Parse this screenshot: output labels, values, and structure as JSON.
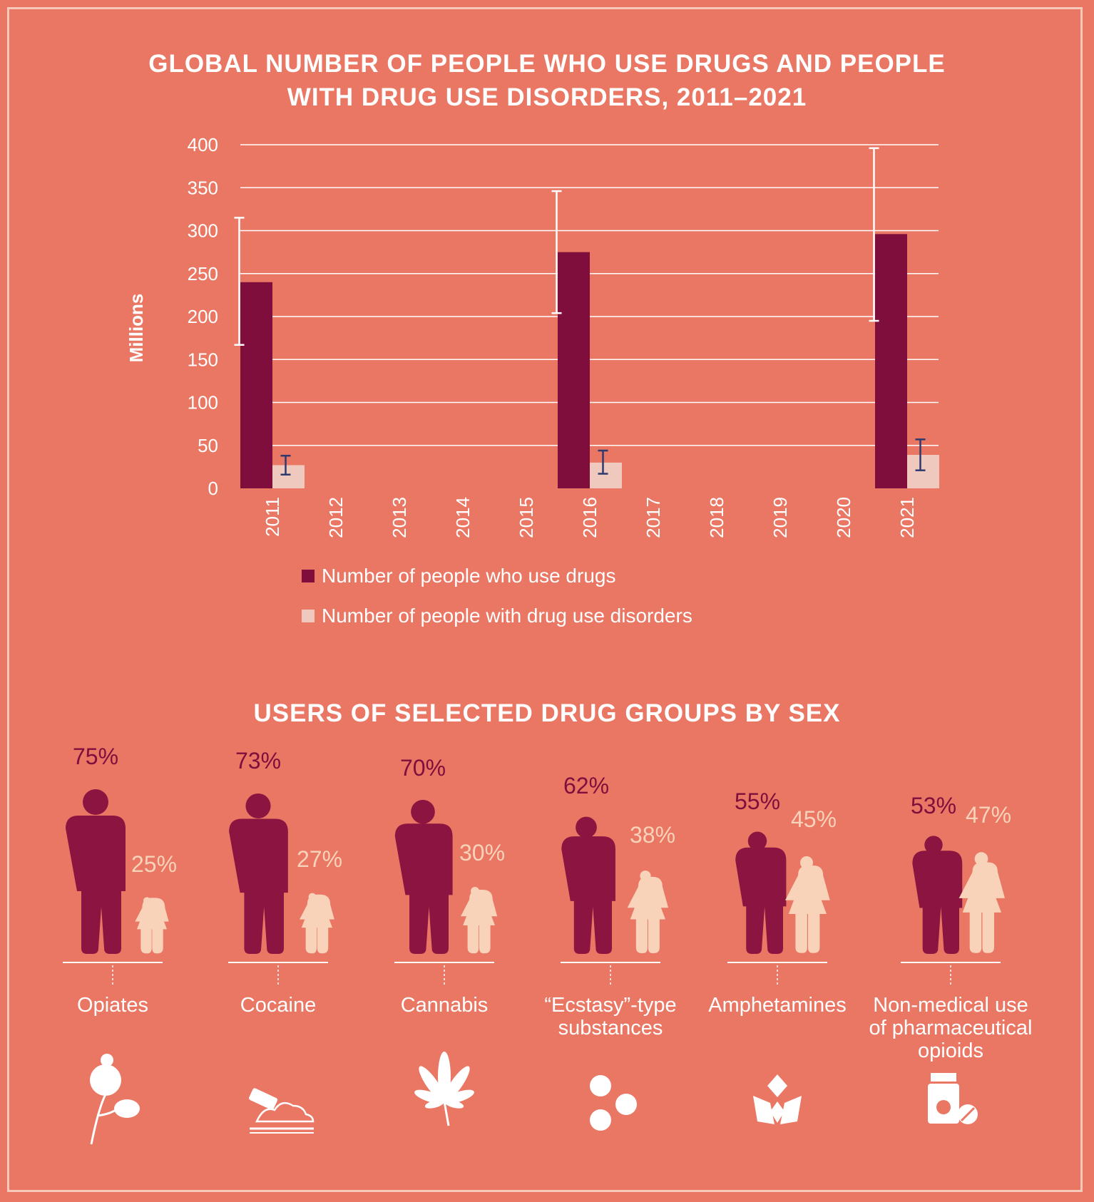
{
  "colors": {
    "background": "#E97764",
    "users": "#7F0E3D",
    "disorders": "#F0C9BE",
    "male": "#8C1440",
    "female": "#F8D3B9"
  },
  "chart_data": [
    {
      "type": "bar",
      "title": "GLOBAL NUMBER OF PEOPLE WHO USE DRUGS AND PEOPLE\nWITH DRUG USE DISORDERS, 2011–2021",
      "ylabel": "Millions",
      "ylim": [
        0,
        400
      ],
      "yticks": [
        0,
        50,
        100,
        150,
        200,
        250,
        300,
        350,
        400
      ],
      "grid": true,
      "categories": [
        "2011",
        "2012",
        "2013",
        "2014",
        "2015",
        "2016",
        "2017",
        "2018",
        "2019",
        "2020",
        "2021"
      ],
      "series": [
        {
          "name": "Number of people who use drugs",
          "values": [
            240,
            null,
            null,
            null,
            null,
            275,
            null,
            null,
            null,
            null,
            296
          ],
          "error_low": [
            167,
            null,
            null,
            null,
            null,
            204,
            null,
            null,
            null,
            null,
            195
          ],
          "error_high": [
            315,
            null,
            null,
            null,
            null,
            346,
            null,
            null,
            null,
            null,
            396
          ]
        },
        {
          "name": "Number of people with drug use disorders",
          "values": [
            27,
            null,
            null,
            null,
            null,
            30,
            null,
            null,
            null,
            null,
            39
          ],
          "error_low": [
            16,
            null,
            null,
            null,
            null,
            17,
            null,
            null,
            null,
            null,
            21
          ],
          "error_high": [
            38,
            null,
            null,
            null,
            null,
            44,
            null,
            null,
            null,
            null,
            57
          ]
        }
      ],
      "legend_position": "bottom"
    },
    {
      "type": "pictograph",
      "title": "USERS OF SELECTED DRUG GROUPS BY SEX",
      "categories": [
        "Opiates",
        "Cocaine",
        "Cannabis",
        "“Ecstasy”-type substances",
        "Amphetamines",
        "Non-medical use of pharmaceutical opioids"
      ],
      "icons": [
        "poppy-icon",
        "cocaine-icon",
        "cannabis-leaf-icon",
        "ecstasy-pills-icon",
        "amphetamine-crystals-icon",
        "pill-bottle-icon"
      ],
      "series": [
        {
          "name": "male",
          "values": [
            75,
            73,
            70,
            62,
            55,
            53
          ]
        },
        {
          "name": "female",
          "values": [
            25,
            27,
            30,
            38,
            45,
            47
          ]
        }
      ]
    }
  ],
  "pct_labels": {
    "male": [
      "75%",
      "73%",
      "70%",
      "62%",
      "55%",
      "53%"
    ],
    "female": [
      "25%",
      "27%",
      "30%",
      "38%",
      "45%",
      "47%"
    ]
  },
  "drug_labels": [
    "Opiates",
    "Cocaine",
    "Cannabis",
    "“Ecstasy”-type\nsubstances",
    "Amphetamines",
    "Non-medical use\nof pharmaceutical\nopioids"
  ]
}
